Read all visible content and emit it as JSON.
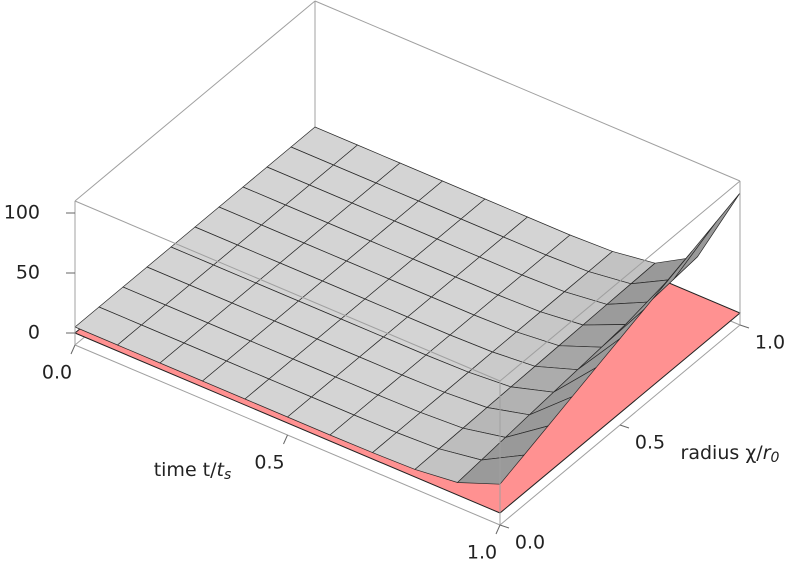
{
  "chart_data": {
    "type": "surface3d",
    "xlabel": {
      "text": "time t/",
      "var": "t",
      "sub": "s"
    },
    "ylabel": {
      "text": "radius χ/",
      "var": "r",
      "sub": "0"
    },
    "x": [
      0,
      0.1,
      0.2,
      0.3,
      0.4,
      0.5,
      0.6,
      0.7,
      0.8,
      0.9,
      1
    ],
    "y": [
      0,
      0.1,
      0.2,
      0.3,
      0.4,
      0.5,
      0.6,
      0.7,
      0.8,
      0.9,
      1
    ],
    "z": [
      [
        5,
        5,
        5,
        5,
        5,
        5,
        5,
        5.3,
        6.3,
        10.4,
        24
      ],
      [
        5,
        5,
        5,
        5,
        5,
        5,
        5,
        5.4,
        6.8,
        12.5,
        31.6
      ],
      [
        5,
        5,
        5,
        5,
        5,
        5,
        5,
        5.5,
        7.3,
        14.7,
        39.2
      ],
      [
        5,
        5,
        5,
        5,
        5,
        5,
        5,
        5.6,
        7.9,
        16.8,
        46.8
      ],
      [
        5,
        5,
        5,
        5,
        5,
        5,
        5,
        5.7,
        8.4,
        19.0,
        54.4
      ],
      [
        5,
        5,
        5,
        5,
        5,
        5,
        5,
        5.8,
        8.9,
        21.1,
        62
      ],
      [
        5,
        5,
        5,
        5,
        5,
        5,
        5,
        5.9,
        9.4,
        23.2,
        69.6
      ],
      [
        5,
        5,
        5,
        5,
        5,
        5,
        5,
        6.0,
        10.0,
        25.4,
        77.2
      ],
      [
        5,
        5,
        5,
        5,
        5,
        5,
        5,
        6.1,
        10.5,
        27.5,
        84.8
      ],
      [
        5,
        5,
        5,
        5,
        5,
        5,
        5,
        6.2,
        11.0,
        29.7,
        92.4
      ],
      [
        5,
        5,
        5,
        5,
        5,
        5,
        5,
        6.3,
        11.5,
        31.8,
        100
      ]
    ],
    "surface_color": "#d4d4d4",
    "plane_z": 0,
    "plane_color": "#ff9191",
    "xlim": [
      0,
      1
    ],
    "ylim": [
      0,
      1
    ],
    "zlim": [
      -10,
      110
    ],
    "xticks": [
      {
        "value": 0,
        "label": "0.0"
      },
      0.5,
      {
        "value": 1,
        "label": "1.0"
      }
    ],
    "yticks": [
      {
        "value": 0,
        "label": "0.0"
      },
      0.5,
      {
        "value": 1,
        "label": "1.0"
      }
    ],
    "zticks": [
      0,
      50,
      100
    ]
  }
}
